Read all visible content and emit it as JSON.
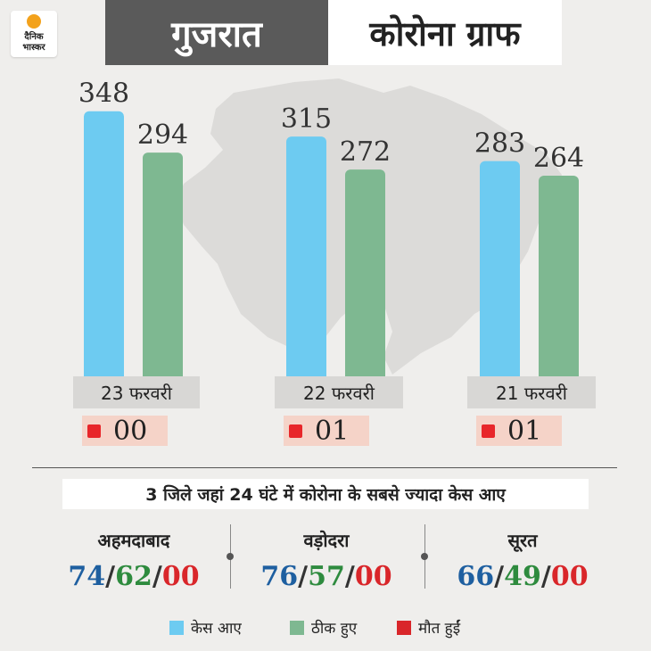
{
  "logo": {
    "line1": "दैनिक",
    "line2": "भास्कर"
  },
  "header": {
    "state": "गुजरात",
    "title": "कोरोना ग्राफ"
  },
  "colors": {
    "cases": "#6dcbf1",
    "recovered": "#7eb891",
    "deaths": "#e8262a"
  },
  "chart_data": {
    "type": "bar",
    "categories": [
      "23 फरवरी",
      "22 फरवरी",
      "21 फरवरी"
    ],
    "series": [
      {
        "name": "केस आए",
        "values": [
          348,
          315,
          283
        ]
      },
      {
        "name": "ठीक हुए",
        "values": [
          294,
          272,
          264
        ]
      }
    ],
    "deaths_labels": [
      "00",
      "01",
      "01"
    ],
    "legend": "bottom"
  },
  "districts_title": "3 जिले जहां 24 घंटे में कोरोना के सबसे ज्यादा केस आए",
  "districts": [
    {
      "name": "अहमदाबाद",
      "cases": "74",
      "recovered": "62",
      "deaths": "00"
    },
    {
      "name": "वड़ोदरा",
      "cases": "76",
      "recovered": "57",
      "deaths": "00"
    },
    {
      "name": "सूरत",
      "cases": "66",
      "recovered": "49",
      "deaths": "00"
    }
  ],
  "legend": [
    {
      "label": "केस आए",
      "color": "#6dcbf1"
    },
    {
      "label": "ठीक हुए",
      "color": "#7eb891"
    },
    {
      "label": "मौत हुईं",
      "color": "#d9262a"
    }
  ]
}
